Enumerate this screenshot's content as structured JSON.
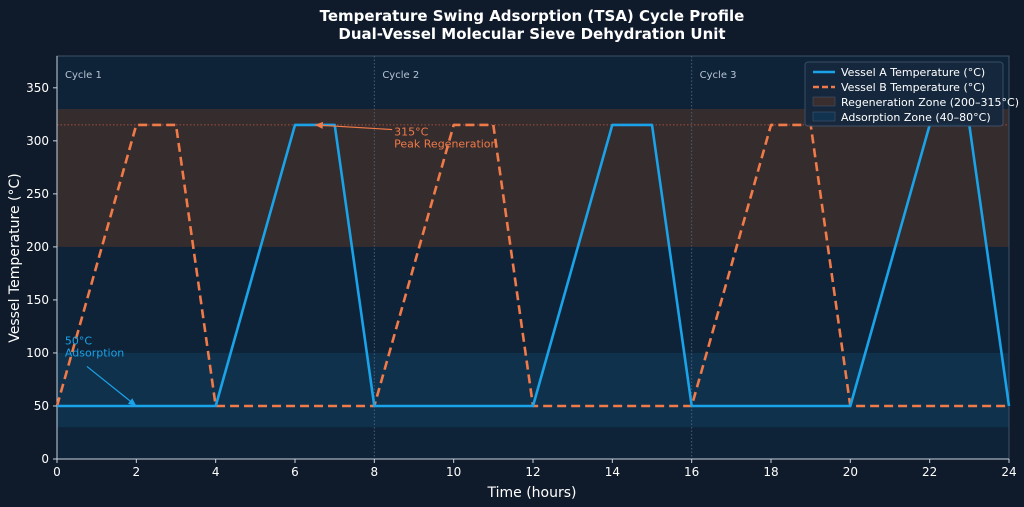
{
  "chart_data": {
    "type": "line",
    "title": "Temperature Swing Adsorption (TSA) Cycle Profile",
    "subtitle": "Dual-Vessel Molecular Sieve Dehydration Unit",
    "xlabel": "Time (hours)",
    "ylabel": "Vessel Temperature (°C)",
    "xlim": [
      0,
      24
    ],
    "ylim": [
      0,
      380
    ],
    "x_ticks": [
      0,
      2,
      4,
      6,
      8,
      10,
      12,
      14,
      16,
      18,
      20,
      22,
      24
    ],
    "y_ticks": [
      0,
      50,
      100,
      150,
      200,
      250,
      300,
      350
    ],
    "grid": false,
    "legend_position": "top-right",
    "series": [
      {
        "name": "Vessel A Temperature (°C)",
        "style": "solid",
        "color": "#1aa3e8",
        "x": [
          0,
          4,
          6,
          7,
          8,
          12,
          14,
          15,
          16,
          20,
          22,
          23,
          24
        ],
        "y": [
          50,
          50,
          315,
          315,
          50,
          50,
          315,
          315,
          50,
          50,
          315,
          315,
          50
        ]
      },
      {
        "name": "Vessel B Temperature (°C)",
        "style": "dashed",
        "color": "#f07a48",
        "x": [
          0,
          2,
          3,
          4,
          8,
          10,
          11,
          12,
          16,
          18,
          19,
          20,
          24
        ],
        "y": [
          50,
          315,
          315,
          50,
          50,
          315,
          315,
          50,
          50,
          315,
          315,
          50,
          50
        ]
      }
    ],
    "zones": [
      {
        "name": "Regeneration Zone (200–315°C)",
        "y": [
          200,
          330
        ],
        "color": "#3a2d2e"
      },
      {
        "name": "Adsorption Zone (40–80°C)",
        "y": [
          30,
          100
        ],
        "color": "#11334f"
      }
    ],
    "peak_line": {
      "y": 315,
      "color": "#c0573a"
    },
    "cycle_lines": [
      8,
      16
    ],
    "cycle_labels": [
      {
        "x": 0,
        "text": "Cycle 1"
      },
      {
        "x": 8,
        "text": "Cycle 2"
      },
      {
        "x": 16,
        "text": "Cycle 3"
      }
    ],
    "annotations": [
      {
        "lines": [
          "315°C",
          "Peak Regeneration"
        ],
        "point": [
          6.5,
          315
        ],
        "text_at": [
          8.5,
          305
        ],
        "color": "#f07a48"
      },
      {
        "lines": [
          "50°C",
          "Adsorption"
        ],
        "point": [
          2,
          50
        ],
        "text_at": [
          0.2,
          108
        ],
        "color": "#1aa3e8"
      }
    ]
  }
}
